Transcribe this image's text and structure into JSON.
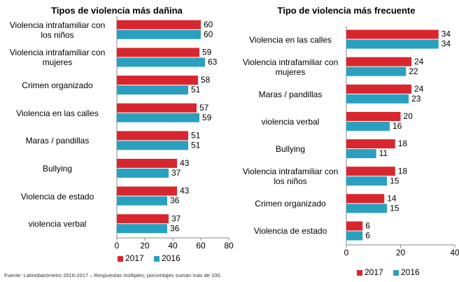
{
  "chart_data": [
    {
      "type": "bar",
      "orientation": "horizontal",
      "title": "Tipos de violencia más dañina",
      "categories": [
        "Violencia intrafamiliar con\nlos niños",
        "Violencia intrafamiliar con\nmujeres",
        "Crimen organizado",
        "Violencia en las calles",
        "Maras / pandillas",
        "Bullying",
        "Violencia de estado",
        "violencia verbal"
      ],
      "series": [
        {
          "name": "2017",
          "color": "#d9262e",
          "values": [
            60,
            59,
            58,
            57,
            51,
            43,
            43,
            37
          ]
        },
        {
          "name": "2016",
          "color": "#2aa0c0",
          "values": [
            60,
            63,
            51,
            59,
            51,
            37,
            36,
            36
          ]
        }
      ],
      "xlim": [
        0,
        80
      ],
      "xticks": [
        0,
        20,
        40,
        60,
        80
      ],
      "grid": false,
      "legend": "bottom"
    },
    {
      "type": "bar",
      "orientation": "horizontal",
      "title": "Tipo de violencia más frecuente",
      "categories": [
        "Violencia en las calles",
        "Violencia intrafamiliar con\nmujeres",
        "Maras / pandillas",
        "violencia verbal",
        "Bullying",
        "Violencia intrafamiliar con\nlos niños",
        "Crimen organizado",
        "Violencia de estado"
      ],
      "series": [
        {
          "name": "2017",
          "color": "#d9262e",
          "values": [
            34,
            24,
            24,
            20,
            18,
            18,
            14,
            6
          ]
        },
        {
          "name": "2016",
          "color": "#2aa0c0",
          "values": [
            34,
            22,
            23,
            16,
            11,
            15,
            15,
            6
          ]
        }
      ],
      "xlim": [
        0,
        40
      ],
      "xticks": [
        0,
        20,
        40
      ],
      "grid": false,
      "legend": "bottom"
    }
  ],
  "source": "Fuente: Latinobarómetro 2016-2017 – Respuestas múltiples, porcentajes suman más de 100."
}
